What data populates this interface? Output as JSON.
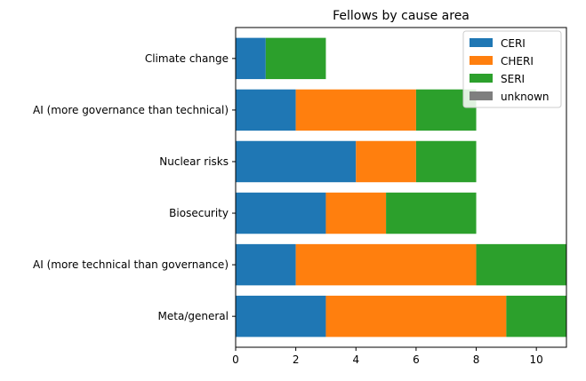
{
  "chart_data": {
    "type": "bar",
    "orientation": "horizontal",
    "stacked": true,
    "title": "Fellows by cause area",
    "xlabel": "",
    "ylabel": "",
    "xlim": [
      0,
      11
    ],
    "xticks": [
      "0",
      "2",
      "4",
      "6",
      "8",
      "10"
    ],
    "categories": [
      "Meta/general",
      "AI (more technical than governance)",
      "Biosecurity",
      "Nuclear risks",
      "AI (more governance than technical)",
      "Climate change"
    ],
    "series": [
      {
        "name": "CERI",
        "color": "#1f77b4",
        "values": [
          3,
          2,
          3,
          4,
          2,
          1
        ]
      },
      {
        "name": "CHERI",
        "color": "#ff7f0e",
        "values": [
          6,
          6,
          2,
          2,
          4,
          0
        ]
      },
      {
        "name": "SERI",
        "color": "#2ca02c",
        "values": [
          2,
          3,
          3,
          2,
          2,
          2
        ]
      },
      {
        "name": "unknown",
        "color": "#7f7f7f",
        "values": [
          0,
          0,
          0,
          0,
          0,
          0
        ]
      }
    ],
    "legend": "top-right",
    "grid": false
  }
}
